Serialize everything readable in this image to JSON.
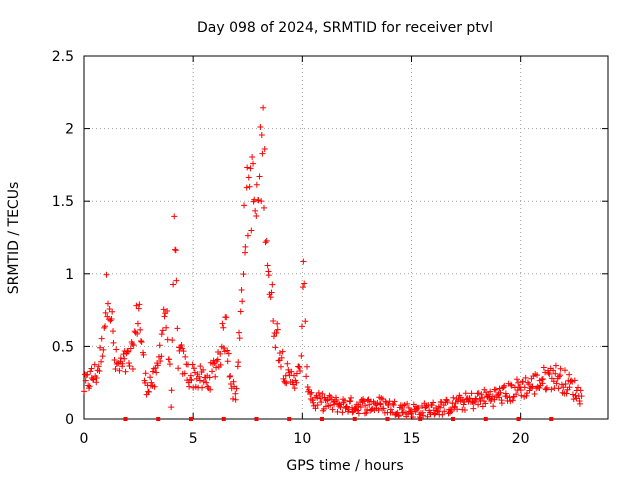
{
  "chart_data": {
    "type": "scatter",
    "title": "Day 098 of 2024, SRMTID for receiver ptvl",
    "xlabel": "GPS time / hours",
    "ylabel": "SRMTID / TECUs",
    "xlim": [
      0,
      24
    ],
    "ylim": [
      0,
      2.5
    ],
    "x_ticks": [
      0,
      5,
      10,
      15,
      20
    ],
    "x_tick_labels": [
      "0",
      "5",
      "10",
      "15",
      "20"
    ],
    "y_ticks": [
      0,
      0.5,
      1,
      1.5,
      2,
      2.5
    ],
    "y_tick_labels": [
      "0",
      "0.5",
      "1",
      "1.5",
      "2",
      "2.5"
    ],
    "grid": true,
    "marker": "+",
    "color": "#ff0000",
    "series": [
      {
        "name": "SRMTID",
        "profile_x": [
          0.0,
          0.3,
          0.6,
          0.8,
          1.0,
          1.1,
          1.25,
          1.4,
          1.6,
          1.9,
          2.2,
          2.35,
          2.5,
          2.65,
          2.8,
          3.0,
          3.3,
          3.5,
          3.7,
          3.85,
          4.0,
          4.15,
          4.3,
          4.5,
          4.8,
          5.0,
          5.3,
          5.6,
          5.9,
          6.2,
          6.5,
          6.8,
          7.0,
          7.3,
          7.6,
          7.9,
          8.2,
          8.5,
          8.8,
          9.1,
          9.4,
          9.6,
          9.9,
          10.05,
          10.2,
          10.5,
          10.8,
          11.5,
          12.5,
          13.5,
          14.5,
          15.0,
          15.5,
          16.0,
          16.5,
          17.0,
          17.5,
          18.0,
          18.5,
          19.0,
          19.5,
          20.0,
          20.5,
          21.0,
          21.5,
          22.0,
          22.5,
          22.8
        ],
        "profile_y": [
          0.22,
          0.28,
          0.32,
          0.45,
          0.78,
          0.95,
          0.72,
          0.4,
          0.35,
          0.38,
          0.42,
          0.58,
          0.8,
          0.5,
          0.25,
          0.25,
          0.27,
          0.5,
          0.78,
          0.55,
          0.12,
          1.3,
          0.45,
          0.4,
          0.3,
          0.3,
          0.28,
          0.25,
          0.32,
          0.45,
          0.62,
          0.2,
          0.18,
          1.2,
          1.65,
          1.4,
          1.9,
          0.9,
          0.6,
          0.4,
          0.25,
          0.3,
          0.3,
          0.95,
          0.28,
          0.12,
          0.12,
          0.1,
          0.09,
          0.1,
          0.07,
          0.06,
          0.06,
          0.07,
          0.08,
          0.1,
          0.12,
          0.13,
          0.15,
          0.16,
          0.18,
          0.22,
          0.23,
          0.27,
          0.3,
          0.26,
          0.2,
          0.15
        ],
        "point_count": 620
      }
    ],
    "bottom_markers_x": [
      1.9,
      3.4,
      4.9,
      6.4,
      7.9,
      9.4,
      10.9,
      12.4,
      13.9,
      15.4,
      16.9,
      18.4,
      19.9,
      21.4
    ]
  }
}
